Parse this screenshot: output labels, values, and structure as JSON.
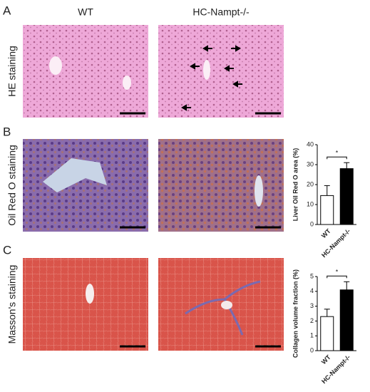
{
  "panels": [
    {
      "letter": "A",
      "row_label": "HE staining"
    },
    {
      "letter": "B",
      "row_label": "Oil Red O staining"
    },
    {
      "letter": "C",
      "row_label": "Masson's staining"
    }
  ],
  "columns": [
    "WT",
    "HC-Nampt-/-"
  ],
  "chart_data": [
    {
      "type": "bar",
      "ylabel": "Liver Oil Red O area (%)",
      "categories": [
        "WT",
        "HC-Nampt-/-"
      ],
      "values": [
        14.5,
        28
      ],
      "errors": [
        5,
        3
      ],
      "colors": [
        "#ffffff",
        "#000000"
      ],
      "annotation": "*",
      "ylim": [
        0,
        40
      ],
      "yticks": [
        0,
        10,
        20,
        30,
        40
      ]
    },
    {
      "type": "bar",
      "ylabel": "Collagen volume fraction (%)",
      "categories": [
        "WT",
        "HC-Nampt-/-"
      ],
      "values": [
        2.3,
        4.1
      ],
      "errors": [
        0.5,
        0.55
      ],
      "colors": [
        "#ffffff",
        "#000000"
      ],
      "annotation": "*",
      "ylim": [
        0,
        5
      ],
      "yticks": [
        0,
        1,
        2,
        3,
        4,
        5
      ]
    }
  ]
}
